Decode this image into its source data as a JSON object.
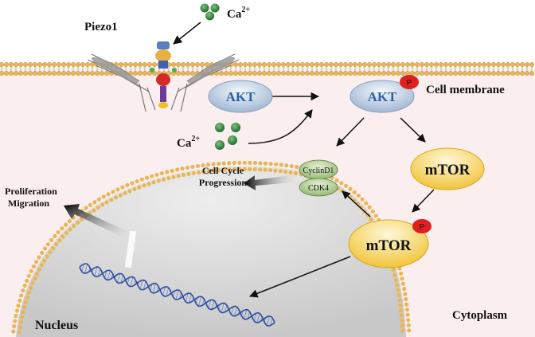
{
  "labels": {
    "piezo1": "Piezo1",
    "ca_ext": "Ca",
    "ca_ext_sup": "2+",
    "ca_int": "Ca",
    "ca_int_sup": "2+",
    "cell_membrane": "Cell membrane",
    "akt": "AKT",
    "akt_p": "AKT",
    "p_badge": "P",
    "mtor": "mTOR",
    "mtor_p": "mTOR",
    "cyclin_d1": "CyclinD1",
    "cdk4": "CDK4",
    "cell_cycle_line1": "Cell Cycle",
    "cell_cycle_line2": "Progression",
    "prolif_line1": "Proliferation",
    "prolif_line2": "Migration",
    "nucleus": "Nucleus",
    "cytoplasm": "Cytoplasm"
  },
  "colors": {
    "cytoplasm_fill": "#fbeeee",
    "membrane_head": "#e8b65a",
    "nucleus_fill": "#dcdcdc",
    "akt_fill": "#c9d9ea",
    "akt_text": "#2f5fa8",
    "mtor_fill": "#f5d560",
    "phospho_red": "#e02020",
    "calcium_green": "#2e8b3a",
    "cyclin_fill": "#a9c98a",
    "dna_blue": "#2c4fa0"
  }
}
